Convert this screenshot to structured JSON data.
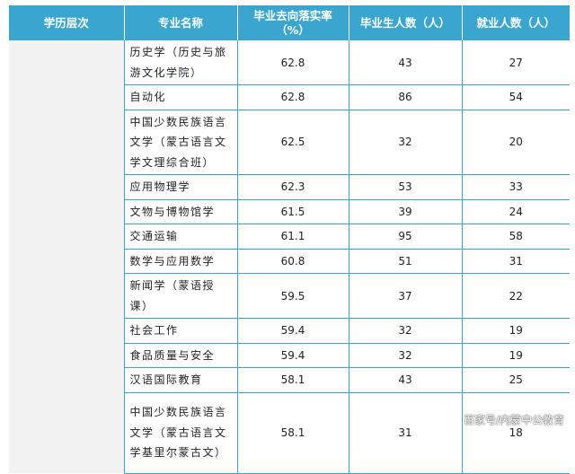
{
  "table": {
    "headers": {
      "level": "学历层次",
      "major": "专业名称",
      "rate_line1": "毕业去向落实率",
      "rate_line2": "（%）",
      "graduates": "毕业生人数（人）",
      "employed": "就业人数（人）"
    },
    "level_value": "",
    "rows": [
      {
        "major": "历史学（历史与旅游文化学院）",
        "rate": "62.8",
        "graduates": "43",
        "employed": "27"
      },
      {
        "major": "自动化",
        "rate": "62.8",
        "graduates": "86",
        "employed": "54"
      },
      {
        "major": "中国少数民族语言文学（蒙古语言文学文理综合班）",
        "rate": "62.5",
        "graduates": "32",
        "employed": "20"
      },
      {
        "major": "应用物理学",
        "rate": "62.3",
        "graduates": "53",
        "employed": "33"
      },
      {
        "major": "文物与博物馆学",
        "rate": "61.5",
        "graduates": "39",
        "employed": "24"
      },
      {
        "major": "交通运输",
        "rate": "61.1",
        "graduates": "95",
        "employed": "58"
      },
      {
        "major": "数学与应用数学",
        "rate": "60.8",
        "graduates": "51",
        "employed": "31"
      },
      {
        "major": "新闻学（蒙语授课）",
        "rate": "59.5",
        "graduates": "37",
        "employed": "22"
      },
      {
        "major": "社会工作",
        "rate": "59.4",
        "graduates": "32",
        "employed": "19"
      },
      {
        "major": "食品质量与安全",
        "rate": "59.4",
        "graduates": "32",
        "employed": "19"
      },
      {
        "major": "汉语国际教育",
        "rate": "58.1",
        "graduates": "43",
        "employed": "25"
      },
      {
        "major": "中国少数民族语言文学（蒙古语言文学基里尔蒙古文）",
        "rate": "58.1",
        "graduates": "31",
        "employed": "18"
      }
    ]
  },
  "watermark": "百家号/内蒙中公教育"
}
